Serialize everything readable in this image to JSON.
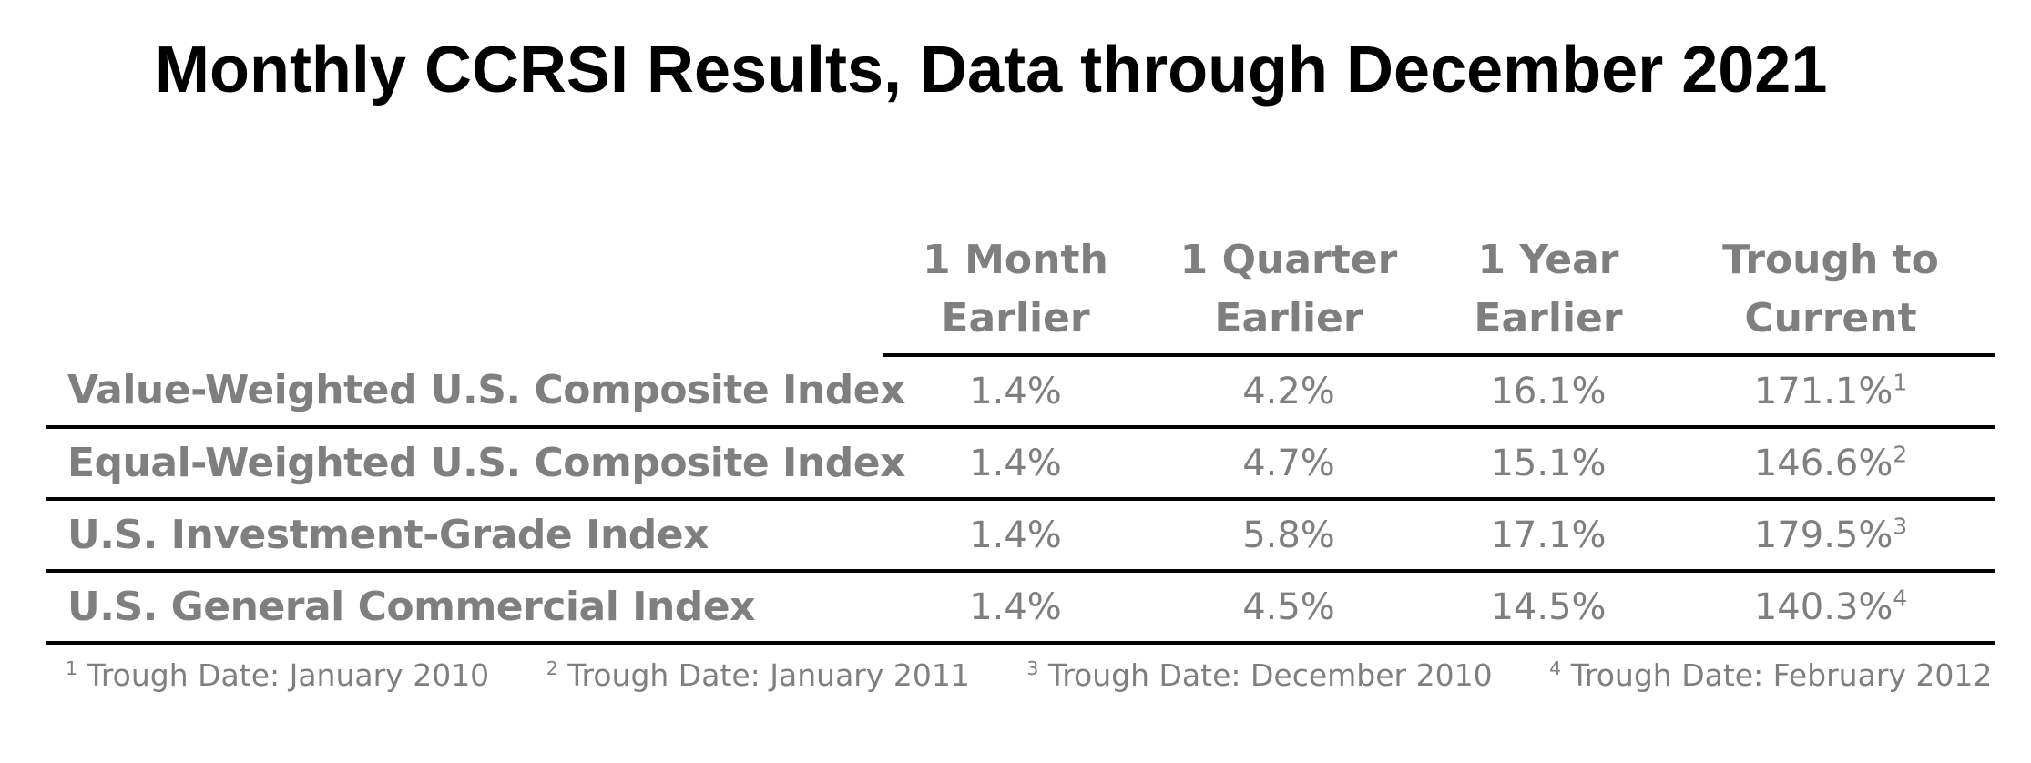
{
  "title": "Monthly CCRSI Results, Data through December 2021",
  "colors": {
    "text_gray": "#7f7f7f",
    "rule": "#000000",
    "title": "#000000"
  },
  "chart_data": {
    "type": "table",
    "title": "Monthly CCRSI Results, Data through December 2021",
    "columns": [
      {
        "line1": "1 Month",
        "line2": "Earlier"
      },
      {
        "line1": "1 Quarter",
        "line2": "Earlier"
      },
      {
        "line1": "1 Year",
        "line2": "Earlier"
      },
      {
        "line1": "Trough to",
        "line2": "Current"
      }
    ],
    "rows": [
      {
        "label": "Value-Weighted U.S. Composite Index",
        "values": [
          "1.4%",
          "4.2%",
          "16.1%",
          "171.1%"
        ],
        "footnote": "1"
      },
      {
        "label": "Equal-Weighted U.S. Composite Index",
        "values": [
          "1.4%",
          "4.7%",
          "15.1%",
          "146.6%"
        ],
        "footnote": "2"
      },
      {
        "label": "U.S. Investment-Grade Index",
        "values": [
          "1.4%",
          "5.8%",
          "17.1%",
          "179.5%"
        ],
        "footnote": "3"
      },
      {
        "label": "U.S. General Commercial Index",
        "values": [
          "1.4%",
          "4.5%",
          "14.5%",
          "140.3%"
        ],
        "footnote": "4"
      }
    ],
    "footnotes": [
      {
        "marker": "1",
        "text": "Trough Date: January 2010"
      },
      {
        "marker": "2",
        "text": "Trough Date: January 2011"
      },
      {
        "marker": "3",
        "text": "Trough Date: December 2010"
      },
      {
        "marker": "4",
        "text": "Trough Date: February 2012"
      }
    ]
  }
}
